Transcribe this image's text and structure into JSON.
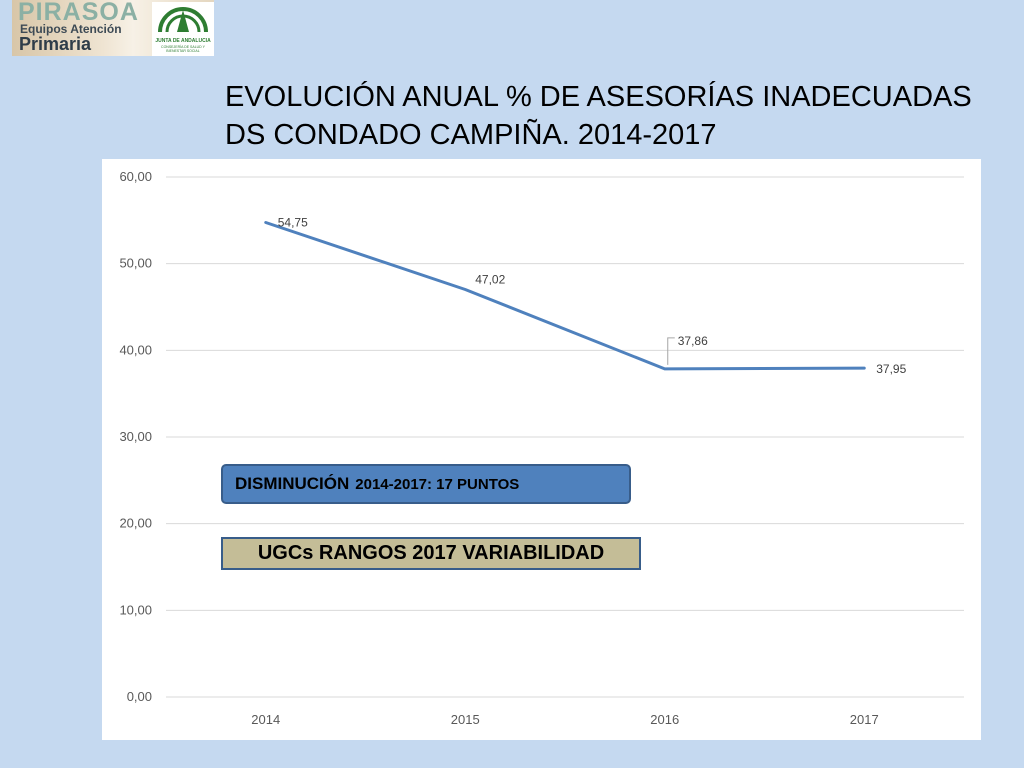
{
  "logo": {
    "brand": "PIRASOA",
    "line1": "Equipos Atención",
    "line2": "Primaria",
    "junta_label": "JUNTA DE ANDALUCIA",
    "junta_sub": "CONSEJERÍA DE SALUD Y BIENESTAR SOCIAL"
  },
  "title": {
    "line1": "EVOLUCIÓN ANUAL % DE ASESORÍAS INADECUADAS",
    "line2": "DS CONDADO CAMPIÑA. 2014-2017"
  },
  "boxes": {
    "decrease_main": "DISMINUCIÓN",
    "decrease_sub": "2014-2017: 17 PUNTOS",
    "ranges": "UGCs RANGOS 2017 VARIABILIDAD"
  },
  "colors": {
    "line": "#4f81bd",
    "box_blue": "#4f81bd",
    "box_tan": "#c4bd97",
    "background": "#c5d9f0"
  },
  "chart_data": {
    "type": "line",
    "categories": [
      "2014",
      "2015",
      "2016",
      "2017"
    ],
    "series": [
      {
        "values": [
          54.75,
          47.02,
          37.86,
          37.95
        ]
      }
    ],
    "data_labels": [
      "54,75",
      "47,02",
      "37,86",
      "37,95"
    ],
    "yticks": [
      0,
      10,
      20,
      30,
      40,
      50,
      60
    ],
    "ytick_labels": [
      "0,00",
      "10,00",
      "20,00",
      "30,00",
      "40,00",
      "50,00",
      "60,00"
    ],
    "ylim": [
      0,
      60
    ],
    "grid": true,
    "legend": "none"
  }
}
